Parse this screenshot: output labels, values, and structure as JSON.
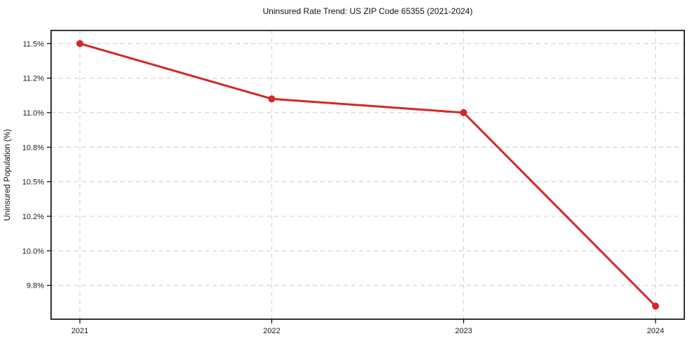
{
  "chart_data": {
    "type": "line",
    "title": "Uninsured Rate Trend: US ZIP Code 65355 (2021-2024)",
    "xlabel": "",
    "ylabel": "Uninsured Population (%)",
    "x": [
      2021,
      2022,
      2023,
      2024
    ],
    "series": [
      {
        "name": "Uninsured rate",
        "values": [
          11.5,
          11.1,
          11.0,
          9.6
        ]
      }
    ],
    "xlim": [
      2020.85,
      2024.15
    ],
    "ylim": [
      9.505,
      11.595
    ],
    "xticks": {
      "values": [
        2021,
        2022,
        2023,
        2024
      ],
      "labels": [
        "2021",
        "2022",
        "2023",
        "2024"
      ]
    },
    "yticks": {
      "values": [
        11.5,
        11.25,
        11.0,
        10.75,
        10.5,
        10.25,
        10.0,
        9.75
      ],
      "labels": [
        "11.5%",
        "11.2%",
        "11.0%",
        "10.8%",
        "10.5%",
        "10.2%",
        "10.0%",
        "9.8%"
      ]
    },
    "grid": true,
    "legend_position": "none",
    "line_color": "#d62728",
    "marker": "circle",
    "grid_color": "#cccccc",
    "axis_color": "#000000",
    "tick_label_color": "#1a1a1a"
  }
}
